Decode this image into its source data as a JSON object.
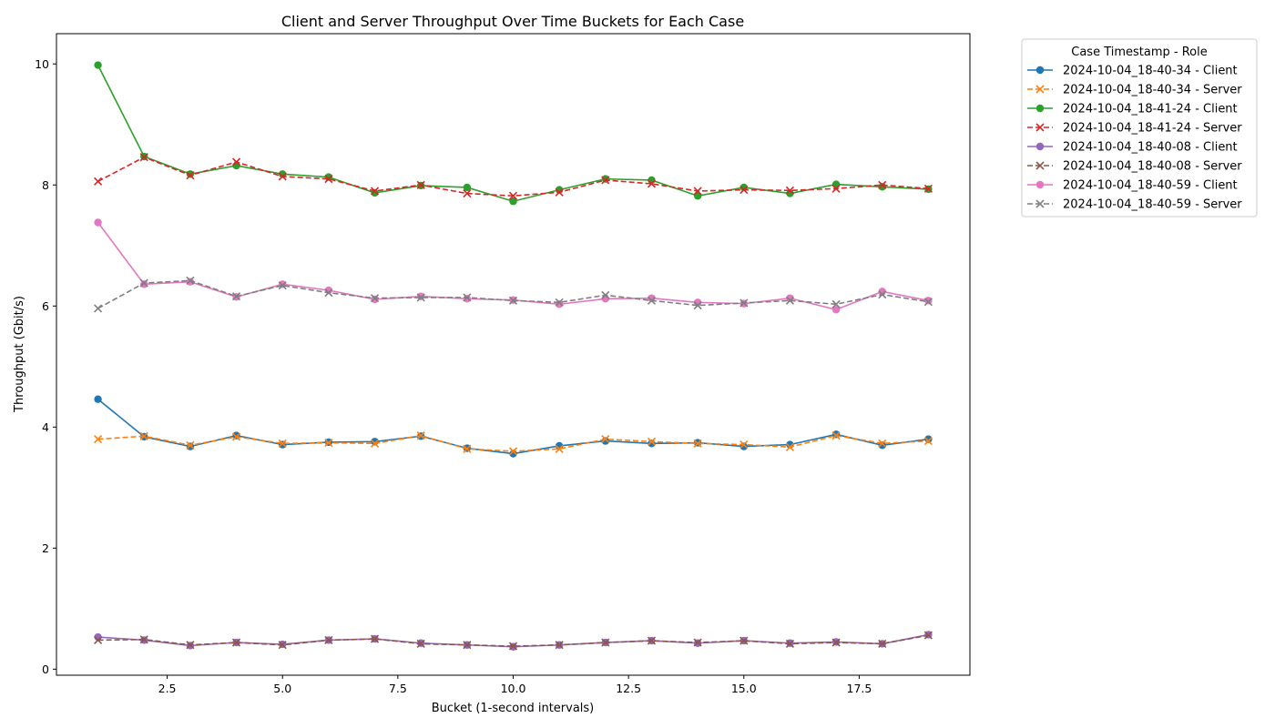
{
  "chart_data": {
    "type": "line",
    "title": "Client and Server Throughput Over Time Buckets for Each Case",
    "xlabel": "Bucket (1-second intervals)",
    "ylabel": "Throughput (Gbit/s)",
    "xlim": [
      0.1,
      19.9
    ],
    "ylim": [
      -0.1,
      10.5
    ],
    "xticks": [
      2.5,
      5.0,
      7.5,
      10.0,
      12.5,
      15.0,
      17.5
    ],
    "xtick_labels": [
      "2.5",
      "5.0",
      "7.5",
      "10.0",
      "12.5",
      "15.0",
      "17.5"
    ],
    "yticks": [
      0,
      2,
      4,
      6,
      8,
      10
    ],
    "ytick_labels": [
      "0",
      "2",
      "4",
      "6",
      "8",
      "10"
    ],
    "grid": false,
    "legend_title": "Case Timestamp - Role",
    "legend_placement": "outside-right-top",
    "x": [
      1,
      2,
      3,
      4,
      5,
      6,
      7,
      8,
      9,
      10,
      11,
      12,
      13,
      14,
      15,
      16,
      17,
      18,
      19
    ],
    "series": [
      {
        "name": "2024-10-04_18-40-34 - Client",
        "color": "#1f77b4",
        "linestyle": "solid",
        "marker": "circle",
        "values": [
          4.46,
          3.84,
          3.68,
          3.86,
          3.71,
          3.75,
          3.76,
          3.85,
          3.65,
          3.56,
          3.69,
          3.77,
          3.73,
          3.74,
          3.68,
          3.71,
          3.88,
          3.7,
          3.8
        ]
      },
      {
        "name": "2024-10-04_18-40-34 - Server",
        "color": "#ff7f0e",
        "linestyle": "dashed",
        "marker": "x",
        "values": [
          3.8,
          3.85,
          3.7,
          3.84,
          3.73,
          3.74,
          3.73,
          3.86,
          3.64,
          3.6,
          3.64,
          3.8,
          3.76,
          3.73,
          3.71,
          3.67,
          3.86,
          3.73,
          3.77
        ]
      },
      {
        "name": "2024-10-04_18-41-24 - Client",
        "color": "#2ca02c",
        "linestyle": "solid",
        "marker": "circle",
        "values": [
          9.98,
          8.47,
          8.18,
          8.32,
          8.18,
          8.13,
          7.87,
          7.99,
          7.96,
          7.73,
          7.92,
          8.1,
          8.08,
          7.82,
          7.96,
          7.86,
          8.01,
          7.97,
          7.93
        ]
      },
      {
        "name": "2024-10-04_18-41-24 - Server",
        "color": "#d62728",
        "linestyle": "dashed",
        "marker": "x",
        "values": [
          8.06,
          8.46,
          8.16,
          8.38,
          8.14,
          8.1,
          7.9,
          8.0,
          7.86,
          7.82,
          7.88,
          8.08,
          8.02,
          7.9,
          7.92,
          7.91,
          7.94,
          8.0,
          7.94
        ]
      },
      {
        "name": "2024-10-04_18-40-08 - Client",
        "color": "#9467bd",
        "linestyle": "solid",
        "marker": "circle",
        "values": [
          0.53,
          0.48,
          0.39,
          0.44,
          0.41,
          0.48,
          0.5,
          0.43,
          0.4,
          0.37,
          0.4,
          0.44,
          0.47,
          0.43,
          0.47,
          0.43,
          0.45,
          0.42,
          0.57
        ]
      },
      {
        "name": "2024-10-04_18-40-08 - Server",
        "color": "#8c564b",
        "linestyle": "dashed",
        "marker": "x",
        "values": [
          0.48,
          0.49,
          0.4,
          0.44,
          0.4,
          0.48,
          0.5,
          0.42,
          0.4,
          0.38,
          0.4,
          0.44,
          0.47,
          0.44,
          0.47,
          0.42,
          0.44,
          0.42,
          0.56
        ]
      },
      {
        "name": "2024-10-04_18-40-59 - Client",
        "color": "#e377c2",
        "linestyle": "solid",
        "marker": "circle",
        "values": [
          7.38,
          6.36,
          6.4,
          6.15,
          6.36,
          6.26,
          6.11,
          6.16,
          6.12,
          6.1,
          6.03,
          6.12,
          6.13,
          6.06,
          6.04,
          6.13,
          5.94,
          6.24,
          6.09
        ]
      },
      {
        "name": "2024-10-04_18-40-59 - Server",
        "color": "#7f7f7f",
        "linestyle": "dashed",
        "marker": "x",
        "values": [
          5.96,
          6.38,
          6.42,
          6.16,
          6.34,
          6.22,
          6.13,
          6.14,
          6.14,
          6.09,
          6.06,
          6.18,
          6.09,
          6.01,
          6.05,
          6.09,
          6.03,
          6.19,
          6.07
        ]
      }
    ]
  }
}
